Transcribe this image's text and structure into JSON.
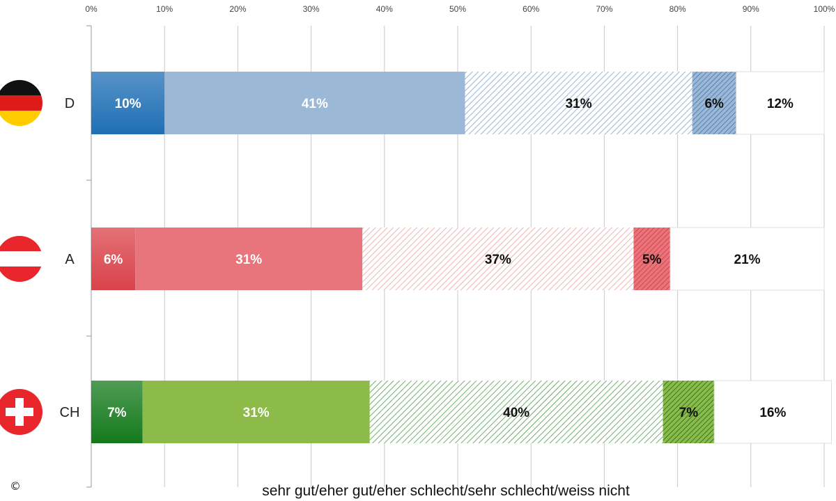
{
  "chart_data": {
    "type": "bar",
    "orientation": "horizontal",
    "stacked": true,
    "percent_stacked": true,
    "categories": [
      "D",
      "A",
      "CH"
    ],
    "series": [
      {
        "values": [
          10,
          6,
          7
        ]
      },
      {
        "values": [
          41,
          31,
          31
        ]
      },
      {
        "values": [
          31,
          37,
          40
        ]
      },
      {
        "values": [
          6,
          5,
          7
        ]
      },
      {
        "values": [
          12,
          21,
          16
        ]
      }
    ],
    "xlabel": "sehr gut/eher gut/eher schlecht/sehr schlecht/weiss nicht",
    "xlim": [
      0,
      100
    ],
    "x_ticks": [
      "0%",
      "10%",
      "20%",
      "30%",
      "40%",
      "50%",
      "60%",
      "70%",
      "80%",
      "90%",
      "100%"
    ],
    "x_axis_position": "top",
    "grid": true,
    "legend": "none",
    "category_icons": [
      "germany-flag-icon",
      "austria-flag-icon",
      "switzerland-flag-icon"
    ],
    "category_colors": [
      {
        "dark": "#1f6fb5",
        "light": "#9bb8d6",
        "hatch": "#7fa3c8",
        "hatch_dark": "#5b7fb0"
      },
      {
        "dark": "#d9424a",
        "light": "#e8757b",
        "hatch": "#ec9fa3",
        "hatch_dark": "#d9424a"
      },
      {
        "dark": "#157a1c",
        "light": "#8dbb4a",
        "hatch": "#4f9a4a",
        "hatch_dark": "#2f7a2a"
      }
    ],
    "data_labels": [
      [
        "10%",
        "41%",
        "31%",
        "6%",
        "12%"
      ],
      [
        "6%",
        "31%",
        "37%",
        "5%",
        "21%"
      ],
      [
        "7%",
        "31%",
        "40%",
        "7%",
        "16%"
      ]
    ]
  },
  "copyright_symbol": "©"
}
